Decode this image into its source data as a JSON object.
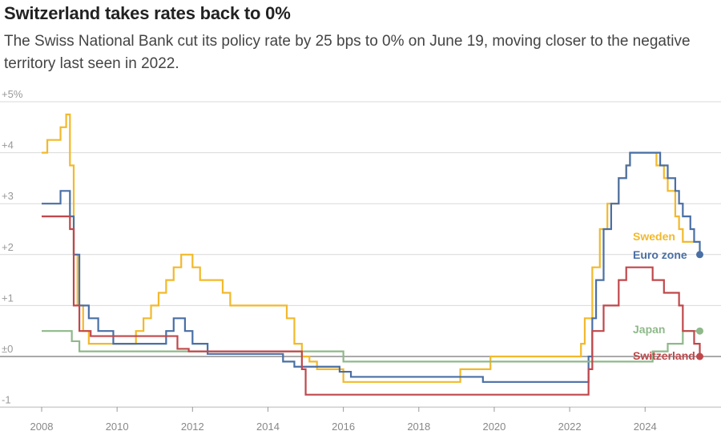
{
  "chart_data": {
    "type": "line",
    "title": "Switzerland takes rates back to 0%",
    "subtitle": "The Swiss National Bank cut its policy rate by 25 bps to 0% on June 19, moving closer to the negative territory last seen in 2022.",
    "xlim": [
      2008,
      2025.8
    ],
    "ylim": [
      -1,
      5
    ],
    "x_ticks": [
      "2008",
      "2010",
      "2012",
      "2014",
      "2016",
      "2018",
      "2020",
      "2022",
      "2024"
    ],
    "y_ticks": [
      {
        "value": 5,
        "label": "+5%"
      },
      {
        "value": 4,
        "label": "+4"
      },
      {
        "value": 3,
        "label": "+3"
      },
      {
        "value": 2,
        "label": "+2"
      },
      {
        "value": 1,
        "label": "+1"
      },
      {
        "value": 0,
        "label": "±0"
      },
      {
        "value": -1,
        "label": "-1"
      }
    ],
    "series": [
      {
        "name": "Sweden",
        "color": "#f2b92b",
        "end_marker": false,
        "points": [
          [
            2008.0,
            4.0
          ],
          [
            2008.15,
            4.25
          ],
          [
            2008.5,
            4.5
          ],
          [
            2008.65,
            4.75
          ],
          [
            2008.75,
            3.75
          ],
          [
            2008.85,
            2.0
          ],
          [
            2008.95,
            1.0
          ],
          [
            2009.1,
            0.5
          ],
          [
            2009.25,
            0.25
          ],
          [
            2010.5,
            0.5
          ],
          [
            2010.7,
            0.75
          ],
          [
            2010.9,
            1.0
          ],
          [
            2011.1,
            1.25
          ],
          [
            2011.3,
            1.5
          ],
          [
            2011.5,
            1.75
          ],
          [
            2011.7,
            2.0
          ],
          [
            2012.0,
            1.75
          ],
          [
            2012.2,
            1.5
          ],
          [
            2012.8,
            1.25
          ],
          [
            2013.0,
            1.0
          ],
          [
            2014.5,
            0.75
          ],
          [
            2014.7,
            0.25
          ],
          [
            2014.9,
            0.0
          ],
          [
            2015.1,
            -0.1
          ],
          [
            2015.3,
            -0.25
          ],
          [
            2016.0,
            -0.5
          ],
          [
            2019.1,
            -0.25
          ],
          [
            2019.9,
            0.0
          ],
          [
            2022.3,
            0.25
          ],
          [
            2022.4,
            0.75
          ],
          [
            2022.6,
            1.75
          ],
          [
            2022.8,
            2.5
          ],
          [
            2023.0,
            3.0
          ],
          [
            2023.3,
            3.5
          ],
          [
            2023.5,
            3.75
          ],
          [
            2023.6,
            4.0
          ],
          [
            2024.3,
            3.75
          ],
          [
            2024.5,
            3.5
          ],
          [
            2024.6,
            3.25
          ],
          [
            2024.8,
            2.75
          ],
          [
            2024.9,
            2.5
          ],
          [
            2025.0,
            2.25
          ],
          [
            2025.3,
            2.25
          ]
        ]
      },
      {
        "name": "Euro zone",
        "color": "#4a6fa5",
        "end_marker": true,
        "points": [
          [
            2008.0,
            3.0
          ],
          [
            2008.5,
            3.25
          ],
          [
            2008.75,
            2.75
          ],
          [
            2008.85,
            2.0
          ],
          [
            2009.0,
            1.0
          ],
          [
            2009.25,
            0.75
          ],
          [
            2009.5,
            0.5
          ],
          [
            2009.9,
            0.25
          ],
          [
            2011.3,
            0.5
          ],
          [
            2011.5,
            0.75
          ],
          [
            2011.8,
            0.5
          ],
          [
            2012.0,
            0.25
          ],
          [
            2012.4,
            0.05
          ],
          [
            2014.4,
            -0.1
          ],
          [
            2014.7,
            -0.2
          ],
          [
            2015.9,
            -0.3
          ],
          [
            2016.2,
            -0.4
          ],
          [
            2019.7,
            -0.5
          ],
          [
            2022.5,
            0.0
          ],
          [
            2022.6,
            0.75
          ],
          [
            2022.7,
            1.5
          ],
          [
            2022.9,
            2.5
          ],
          [
            2023.1,
            3.0
          ],
          [
            2023.3,
            3.5
          ],
          [
            2023.5,
            3.75
          ],
          [
            2023.6,
            4.0
          ],
          [
            2024.4,
            3.75
          ],
          [
            2024.6,
            3.5
          ],
          [
            2024.8,
            3.25
          ],
          [
            2024.9,
            3.0
          ],
          [
            2025.0,
            2.75
          ],
          [
            2025.2,
            2.5
          ],
          [
            2025.3,
            2.25
          ],
          [
            2025.45,
            2.0
          ]
        ]
      },
      {
        "name": "Japan",
        "color": "#8fb98a",
        "end_marker": true,
        "points": [
          [
            2008.0,
            0.5
          ],
          [
            2008.8,
            0.3
          ],
          [
            2009.0,
            0.1
          ],
          [
            2016.0,
            -0.1
          ],
          [
            2024.2,
            0.1
          ],
          [
            2024.6,
            0.25
          ],
          [
            2025.0,
            0.5
          ],
          [
            2025.45,
            0.5
          ]
        ]
      },
      {
        "name": "Switzerland",
        "color": "#c0474b",
        "end_marker": true,
        "points": [
          [
            2008.0,
            2.75
          ],
          [
            2008.75,
            2.5
          ],
          [
            2008.85,
            1.0
          ],
          [
            2009.0,
            0.5
          ],
          [
            2009.3,
            0.4
          ],
          [
            2011.6,
            0.15
          ],
          [
            2011.9,
            0.1
          ],
          [
            2014.9,
            -0.25
          ],
          [
            2015.0,
            -0.75
          ],
          [
            2022.5,
            -0.25
          ],
          [
            2022.6,
            0.5
          ],
          [
            2022.9,
            1.0
          ],
          [
            2023.3,
            1.5
          ],
          [
            2023.5,
            1.75
          ],
          [
            2024.2,
            1.5
          ],
          [
            2024.5,
            1.25
          ],
          [
            2024.9,
            1.0
          ],
          [
            2025.0,
            0.5
          ],
          [
            2025.3,
            0.25
          ],
          [
            2025.45,
            0.0
          ]
        ]
      }
    ]
  }
}
